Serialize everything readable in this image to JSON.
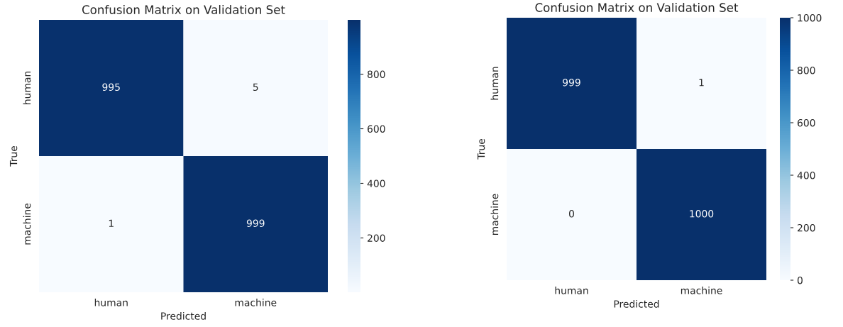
{
  "chart_data": [
    {
      "type": "heatmap",
      "title": "Confusion Matrix on Validation Set",
      "xlabel": "Predicted",
      "ylabel": "True",
      "categories": [
        "human",
        "machine"
      ],
      "y_categories": [
        "human",
        "machine"
      ],
      "cells": [
        [
          995,
          5
        ],
        [
          1,
          999
        ]
      ],
      "clim": [
        1,
        999
      ],
      "cticks": [
        200,
        400,
        600,
        800
      ],
      "data_labels": true
    },
    {
      "type": "heatmap",
      "title": "Confusion Matrix on Validation Set",
      "xlabel": "Predicted",
      "ylabel": "True",
      "categories": [
        "human",
        "machine"
      ],
      "y_categories": [
        "human",
        "machine"
      ],
      "cells": [
        [
          999,
          1
        ],
        [
          0,
          1000
        ]
      ],
      "clim": [
        0,
        1000
      ],
      "cticks": [
        0,
        200,
        400,
        600,
        800,
        1000
      ],
      "data_labels": true
    }
  ]
}
